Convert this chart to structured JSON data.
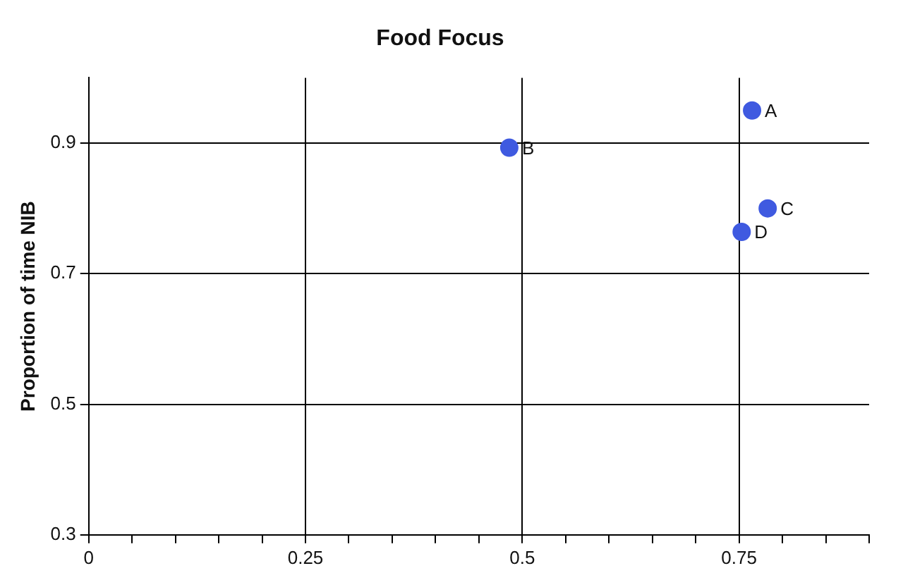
{
  "chart_data": {
    "type": "scatter",
    "title": "Food Focus",
    "ylabel": "Proportion of time NIB",
    "series": [
      {
        "color": "#3f5ae0",
        "x": [
          0.765,
          0.485,
          0.783,
          0.753
        ],
        "values": [
          0.95,
          0.893,
          0.8,
          0.764
        ]
      }
    ],
    "annotations": [
      {
        "text": "A",
        "x": 0.765,
        "y": 0.95
      },
      {
        "text": "B",
        "x": 0.485,
        "y": 0.893
      },
      {
        "text": "C",
        "x": 0.783,
        "y": 0.8
      },
      {
        "text": "D",
        "x": 0.753,
        "y": 0.764
      }
    ],
    "xlim": [
      0,
      0.9
    ],
    "ylim": [
      0.3,
      1.0
    ],
    "xticks": [
      0,
      {
        "value": 0.05,
        "label": null
      },
      {
        "value": 0.1,
        "label": null
      },
      {
        "value": 0.15,
        "label": null
      },
      {
        "value": 0.2,
        "label": null
      },
      0.25,
      {
        "value": 0.3,
        "label": null
      },
      {
        "value": 0.35,
        "label": null
      },
      {
        "value": 0.4,
        "label": null
      },
      {
        "value": 0.45,
        "label": null
      },
      0.5,
      {
        "value": 0.55,
        "label": null
      },
      {
        "value": 0.6,
        "label": null
      },
      {
        "value": 0.65,
        "label": null
      },
      {
        "value": 0.7,
        "label": null
      },
      0.75,
      {
        "value": 0.8,
        "label": null
      },
      {
        "value": 0.85,
        "label": null
      },
      {
        "value": 0.9,
        "label": null
      }
    ],
    "yticks": [
      0.3,
      0.5,
      0.7,
      0.9
    ],
    "grid": true,
    "legend": false,
    "marker": "circle"
  }
}
